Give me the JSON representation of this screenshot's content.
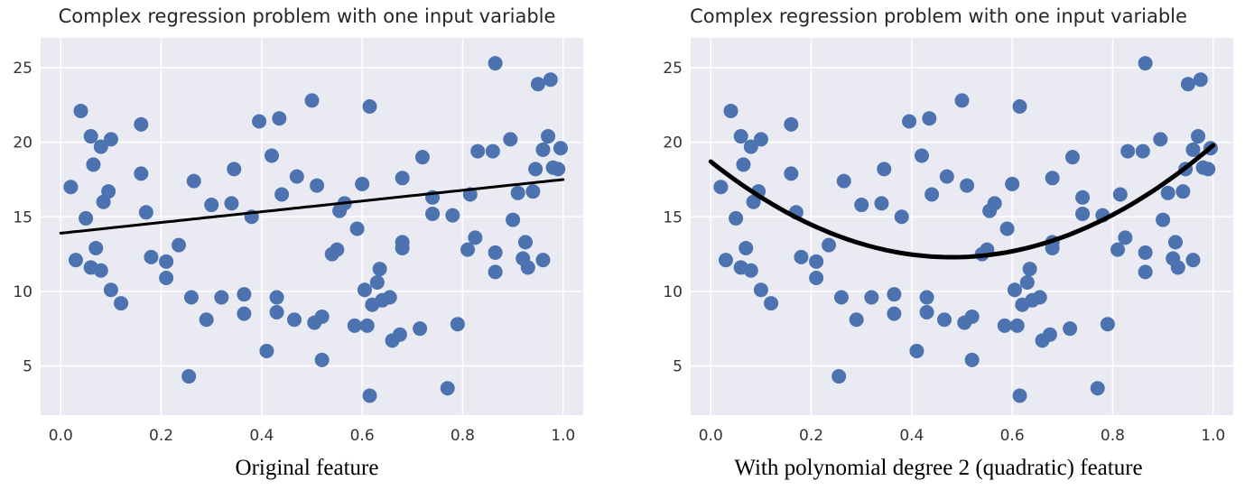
{
  "chart_data": [
    {
      "type": "scatter",
      "title": "Complex regression problem with one input variable",
      "caption": "Original feature",
      "xlim": [
        -0.04,
        1.04
      ],
      "ylim": [
        1.7,
        27.0
      ],
      "xticks": [
        "0.0",
        "0.2",
        "0.4",
        "0.6",
        "0.8",
        "1.0"
      ],
      "yticks": [
        "5",
        "10",
        "15",
        "20",
        "25"
      ],
      "grid": true,
      "point_color": "#4c72b0",
      "background_color": "#eaeaf2",
      "points": [
        [
          0.02,
          17.0
        ],
        [
          0.03,
          12.1
        ],
        [
          0.04,
          22.1
        ],
        [
          0.05,
          14.9
        ],
        [
          0.06,
          20.4
        ],
        [
          0.06,
          11.6
        ],
        [
          0.065,
          18.5
        ],
        [
          0.07,
          12.9
        ],
        [
          0.08,
          19.7
        ],
        [
          0.08,
          11.4
        ],
        [
          0.085,
          16.0
        ],
        [
          0.095,
          16.7
        ],
        [
          0.1,
          20.2
        ],
        [
          0.1,
          10.1
        ],
        [
          0.12,
          9.2
        ],
        [
          0.16,
          21.2
        ],
        [
          0.16,
          17.9
        ],
        [
          0.17,
          15.3
        ],
        [
          0.18,
          12.3
        ],
        [
          0.21,
          12.0
        ],
        [
          0.21,
          10.9
        ],
        [
          0.235,
          13.1
        ],
        [
          0.255,
          4.3
        ],
        [
          0.26,
          9.6
        ],
        [
          0.265,
          17.4
        ],
        [
          0.29,
          8.1
        ],
        [
          0.3,
          15.8
        ],
        [
          0.32,
          9.6
        ],
        [
          0.34,
          15.9
        ],
        [
          0.345,
          18.2
        ],
        [
          0.365,
          9.8
        ],
        [
          0.365,
          8.5
        ],
        [
          0.38,
          15.0
        ],
        [
          0.395,
          21.4
        ],
        [
          0.41,
          6.0
        ],
        [
          0.42,
          19.1
        ],
        [
          0.43,
          9.6
        ],
        [
          0.43,
          8.6
        ],
        [
          0.435,
          21.6
        ],
        [
          0.44,
          16.5
        ],
        [
          0.465,
          8.1
        ],
        [
          0.47,
          17.7
        ],
        [
          0.5,
          22.8
        ],
        [
          0.505,
          7.9
        ],
        [
          0.51,
          17.1
        ],
        [
          0.52,
          8.3
        ],
        [
          0.52,
          5.4
        ],
        [
          0.54,
          12.5
        ],
        [
          0.55,
          12.8
        ],
        [
          0.555,
          15.4
        ],
        [
          0.565,
          15.9
        ],
        [
          0.585,
          7.7
        ],
        [
          0.59,
          14.2
        ],
        [
          0.6,
          17.2
        ],
        [
          0.605,
          10.1
        ],
        [
          0.61,
          7.7
        ],
        [
          0.615,
          3.0
        ],
        [
          0.615,
          22.4
        ],
        [
          0.62,
          9.1
        ],
        [
          0.63,
          10.6
        ],
        [
          0.635,
          11.5
        ],
        [
          0.64,
          9.4
        ],
        [
          0.655,
          9.6
        ],
        [
          0.66,
          6.7
        ],
        [
          0.675,
          7.1
        ],
        [
          0.68,
          13.3
        ],
        [
          0.68,
          12.9
        ],
        [
          0.68,
          17.6
        ],
        [
          0.715,
          7.5
        ],
        [
          0.72,
          19.0
        ],
        [
          0.74,
          15.2
        ],
        [
          0.74,
          16.3
        ],
        [
          0.77,
          3.5
        ],
        [
          0.78,
          15.1
        ],
        [
          0.79,
          7.8
        ],
        [
          0.81,
          12.8
        ],
        [
          0.815,
          16.5
        ],
        [
          0.825,
          13.6
        ],
        [
          0.83,
          19.4
        ],
        [
          0.86,
          19.4
        ],
        [
          0.865,
          12.6
        ],
        [
          0.865,
          11.3
        ],
        [
          0.865,
          25.3
        ],
        [
          0.895,
          20.2
        ],
        [
          0.9,
          14.8
        ],
        [
          0.91,
          16.6
        ],
        [
          0.92,
          12.2
        ],
        [
          0.925,
          13.3
        ],
        [
          0.93,
          11.6
        ],
        [
          0.94,
          16.7
        ],
        [
          0.945,
          18.2
        ],
        [
          0.95,
          23.9
        ],
        [
          0.96,
          12.1
        ],
        [
          0.96,
          19.5
        ],
        [
          0.97,
          20.4
        ],
        [
          0.975,
          24.2
        ],
        [
          0.98,
          18.3
        ],
        [
          0.99,
          18.2
        ],
        [
          0.995,
          19.6
        ]
      ],
      "fit": {
        "kind": "linear",
        "intercept": 13.9,
        "slope": 3.6,
        "x_range": [
          0.0,
          1.0
        ],
        "color": "#000000"
      }
    },
    {
      "type": "scatter",
      "title": "Complex regression problem with one input variable",
      "caption": "With polynomial degree 2 (quadratic) feature",
      "xlim": [
        -0.04,
        1.04
      ],
      "ylim": [
        1.7,
        27.0
      ],
      "xticks": [
        "0.0",
        "0.2",
        "0.4",
        "0.6",
        "0.8",
        "1.0"
      ],
      "yticks": [
        "5",
        "10",
        "15",
        "20",
        "25"
      ],
      "grid": true,
      "point_color": "#4c72b0",
      "background_color": "#eaeaf2",
      "points": [
        [
          0.02,
          17.0
        ],
        [
          0.03,
          12.1
        ],
        [
          0.04,
          22.1
        ],
        [
          0.05,
          14.9
        ],
        [
          0.06,
          20.4
        ],
        [
          0.06,
          11.6
        ],
        [
          0.065,
          18.5
        ],
        [
          0.07,
          12.9
        ],
        [
          0.08,
          19.7
        ],
        [
          0.08,
          11.4
        ],
        [
          0.085,
          16.0
        ],
        [
          0.095,
          16.7
        ],
        [
          0.1,
          20.2
        ],
        [
          0.1,
          10.1
        ],
        [
          0.12,
          9.2
        ],
        [
          0.16,
          21.2
        ],
        [
          0.16,
          17.9
        ],
        [
          0.17,
          15.3
        ],
        [
          0.18,
          12.3
        ],
        [
          0.21,
          12.0
        ],
        [
          0.21,
          10.9
        ],
        [
          0.235,
          13.1
        ],
        [
          0.255,
          4.3
        ],
        [
          0.26,
          9.6
        ],
        [
          0.265,
          17.4
        ],
        [
          0.29,
          8.1
        ],
        [
          0.3,
          15.8
        ],
        [
          0.32,
          9.6
        ],
        [
          0.34,
          15.9
        ],
        [
          0.345,
          18.2
        ],
        [
          0.365,
          9.8
        ],
        [
          0.365,
          8.5
        ],
        [
          0.38,
          15.0
        ],
        [
          0.395,
          21.4
        ],
        [
          0.41,
          6.0
        ],
        [
          0.42,
          19.1
        ],
        [
          0.43,
          9.6
        ],
        [
          0.43,
          8.6
        ],
        [
          0.435,
          21.6
        ],
        [
          0.44,
          16.5
        ],
        [
          0.465,
          8.1
        ],
        [
          0.47,
          17.7
        ],
        [
          0.5,
          22.8
        ],
        [
          0.505,
          7.9
        ],
        [
          0.51,
          17.1
        ],
        [
          0.52,
          8.3
        ],
        [
          0.52,
          5.4
        ],
        [
          0.54,
          12.5
        ],
        [
          0.55,
          12.8
        ],
        [
          0.555,
          15.4
        ],
        [
          0.565,
          15.9
        ],
        [
          0.585,
          7.7
        ],
        [
          0.59,
          14.2
        ],
        [
          0.6,
          17.2
        ],
        [
          0.605,
          10.1
        ],
        [
          0.61,
          7.7
        ],
        [
          0.615,
          3.0
        ],
        [
          0.615,
          22.4
        ],
        [
          0.62,
          9.1
        ],
        [
          0.63,
          10.6
        ],
        [
          0.635,
          11.5
        ],
        [
          0.64,
          9.4
        ],
        [
          0.655,
          9.6
        ],
        [
          0.66,
          6.7
        ],
        [
          0.675,
          7.1
        ],
        [
          0.68,
          13.3
        ],
        [
          0.68,
          12.9
        ],
        [
          0.68,
          17.6
        ],
        [
          0.715,
          7.5
        ],
        [
          0.72,
          19.0
        ],
        [
          0.74,
          15.2
        ],
        [
          0.74,
          16.3
        ],
        [
          0.77,
          3.5
        ],
        [
          0.78,
          15.1
        ],
        [
          0.79,
          7.8
        ],
        [
          0.81,
          12.8
        ],
        [
          0.815,
          16.5
        ],
        [
          0.825,
          13.6
        ],
        [
          0.83,
          19.4
        ],
        [
          0.86,
          19.4
        ],
        [
          0.865,
          12.6
        ],
        [
          0.865,
          11.3
        ],
        [
          0.865,
          25.3
        ],
        [
          0.895,
          20.2
        ],
        [
          0.9,
          14.8
        ],
        [
          0.91,
          16.6
        ],
        [
          0.92,
          12.2
        ],
        [
          0.925,
          13.3
        ],
        [
          0.93,
          11.6
        ],
        [
          0.94,
          16.7
        ],
        [
          0.945,
          18.2
        ],
        [
          0.95,
          23.9
        ],
        [
          0.96,
          12.1
        ],
        [
          0.96,
          19.5
        ],
        [
          0.97,
          20.4
        ],
        [
          0.975,
          24.2
        ],
        [
          0.98,
          18.3
        ],
        [
          0.99,
          18.2
        ],
        [
          0.995,
          19.6
        ]
      ],
      "fit": {
        "kind": "quadratic",
        "a": 27.8,
        "b": -26.7,
        "c": 18.7,
        "x_range": [
          0.0,
          1.0
        ],
        "color": "#000000"
      }
    }
  ]
}
